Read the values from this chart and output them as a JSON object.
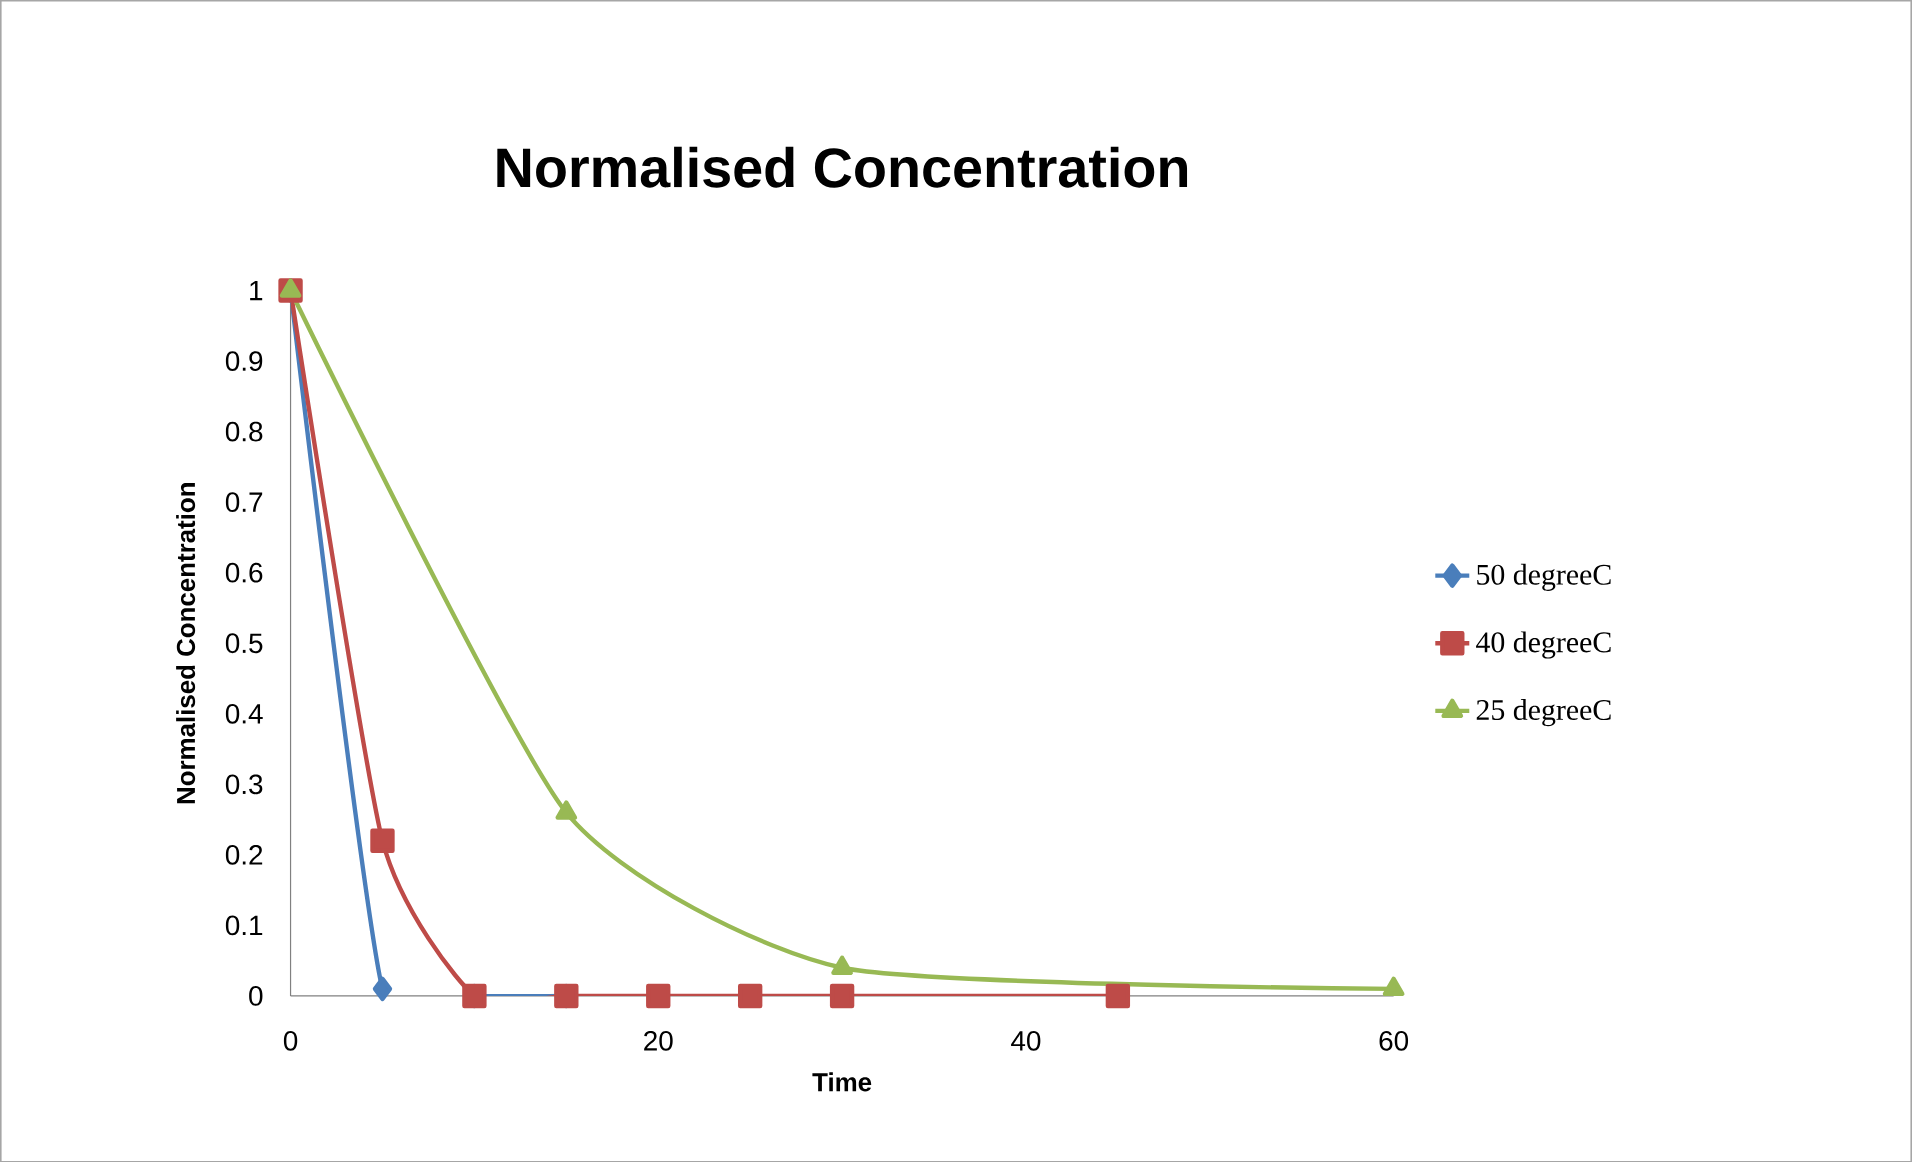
{
  "chart_data": {
    "type": "line",
    "title": "Normalised Concentration",
    "xlabel": "Time",
    "ylabel": "Normalised Concentration",
    "xlim": [
      0,
      60
    ],
    "xticks": [
      0,
      20,
      40,
      60
    ],
    "ylim": [
      0,
      1
    ],
    "yticks": [
      0,
      0.1,
      0.2,
      0.3,
      0.4,
      0.5,
      0.6,
      0.7,
      0.8,
      0.9,
      1
    ],
    "grid": false,
    "legend": "right",
    "series": [
      {
        "name": "50 degreeC",
        "color": "#4a7ebb",
        "marker": "diamond",
        "x": [
          0,
          5,
          10,
          15
        ],
        "values": [
          1,
          0.01,
          0,
          0
        ]
      },
      {
        "name": "40 degreeC",
        "color": "#be4b48",
        "marker": "square",
        "x": [
          0,
          5,
          10,
          15,
          20,
          25,
          30,
          45
        ],
        "values": [
          1,
          0.22,
          0,
          0,
          0,
          0,
          0,
          0
        ]
      },
      {
        "name": "25 degreeC",
        "color": "#98b954",
        "marker": "triangle",
        "x": [
          0,
          15,
          30,
          60
        ],
        "values": [
          1,
          0.26,
          0.04,
          0.01
        ]
      }
    ]
  }
}
